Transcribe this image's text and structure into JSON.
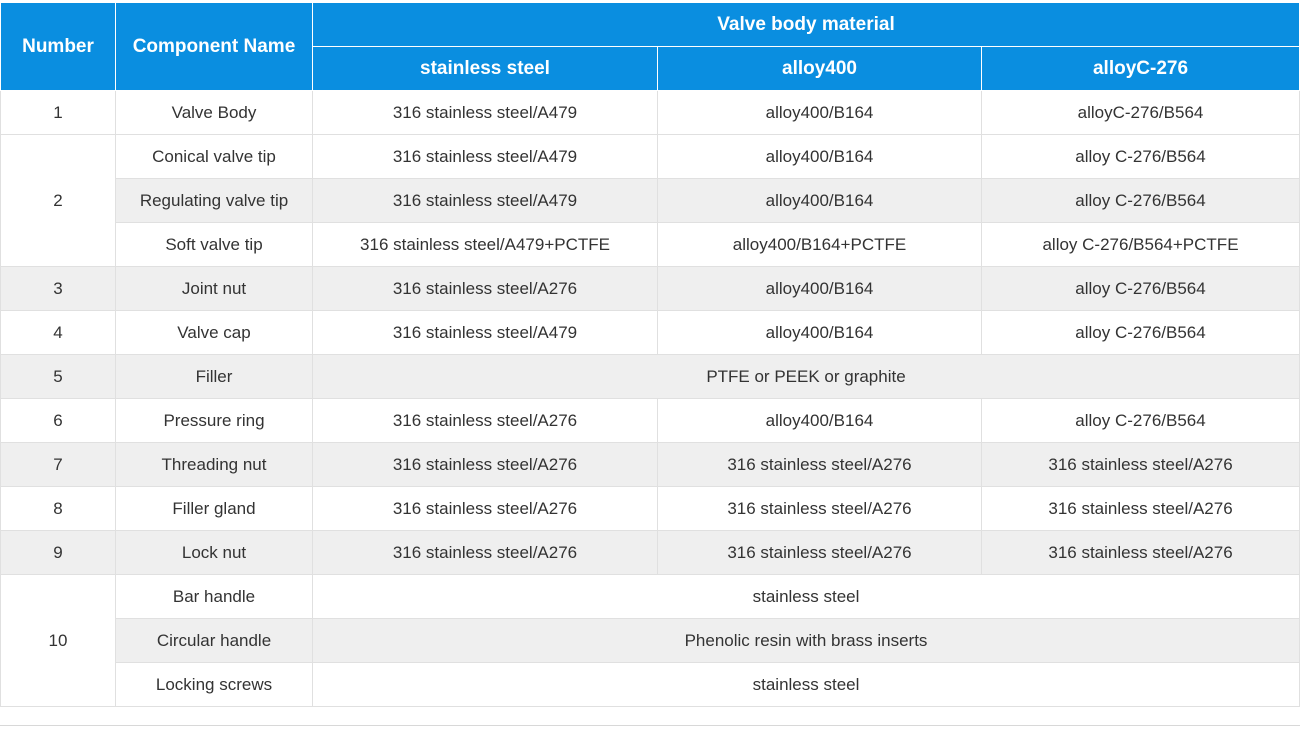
{
  "header": {
    "number": "Number",
    "component": "Component Name",
    "group": "Valve body material",
    "materials": [
      "stainless steel",
      "alloy400",
      "alloyC-276"
    ]
  },
  "rows": [
    {
      "number": "1",
      "parts": [
        {
          "name": "Valve Body",
          "c1": "316 stainless steel/A479",
          "c2": "alloy400/B164",
          "c3": "alloyC-276/B564"
        }
      ]
    },
    {
      "number": "2",
      "parts": [
        {
          "name": "Conical valve tip",
          "c1": "316 stainless steel/A479",
          "c2": "alloy400/B164",
          "c3": "alloy C-276/B564"
        },
        {
          "name": "Regulating valve tip",
          "c1": "316 stainless steel/A479",
          "c2": "alloy400/B164",
          "c3": "alloy C-276/B564"
        },
        {
          "name": "Soft valve tip",
          "c1": "316 stainless steel/A479+PCTFE",
          "c2": "alloy400/B164+PCTFE",
          "c3": "alloy C-276/B564+PCTFE"
        }
      ]
    },
    {
      "number": "3",
      "parts": [
        {
          "name": "Joint nut",
          "c1": "316 stainless steel/A276",
          "c2": "alloy400/B164",
          "c3": "alloy C-276/B564"
        }
      ]
    },
    {
      "number": "4",
      "parts": [
        {
          "name": "Valve cap",
          "c1": "316 stainless steel/A479",
          "c2": "alloy400/B164",
          "c3": "alloy C-276/B564"
        }
      ]
    },
    {
      "number": "5",
      "parts": [
        {
          "name": "Filler",
          "merged": "PTFE or PEEK or graphite"
        }
      ]
    },
    {
      "number": "6",
      "parts": [
        {
          "name": "Pressure ring",
          "c1": "316 stainless steel/A276",
          "c2": "alloy400/B164",
          "c3": "alloy C-276/B564"
        }
      ]
    },
    {
      "number": "7",
      "parts": [
        {
          "name": "Threading nut",
          "c1": "316 stainless steel/A276",
          "c2": "316 stainless steel/A276",
          "c3": "316 stainless steel/A276"
        }
      ]
    },
    {
      "number": "8",
      "parts": [
        {
          "name": "Filler gland",
          "c1": "316 stainless steel/A276",
          "c2": "316 stainless steel/A276",
          "c3": "316 stainless steel/A276"
        }
      ]
    },
    {
      "number": "9",
      "parts": [
        {
          "name": "Lock nut",
          "c1": "316 stainless steel/A276",
          "c2": "316 stainless steel/A276",
          "c3": "316 stainless steel/A276"
        }
      ]
    },
    {
      "number": "10",
      "parts": [
        {
          "name": "Bar handle",
          "merged": "stainless steel"
        },
        {
          "name": "Circular handle",
          "merged": "Phenolic resin with brass inserts"
        },
        {
          "name": "Locking screws",
          "merged": "stainless steel"
        }
      ]
    }
  ]
}
